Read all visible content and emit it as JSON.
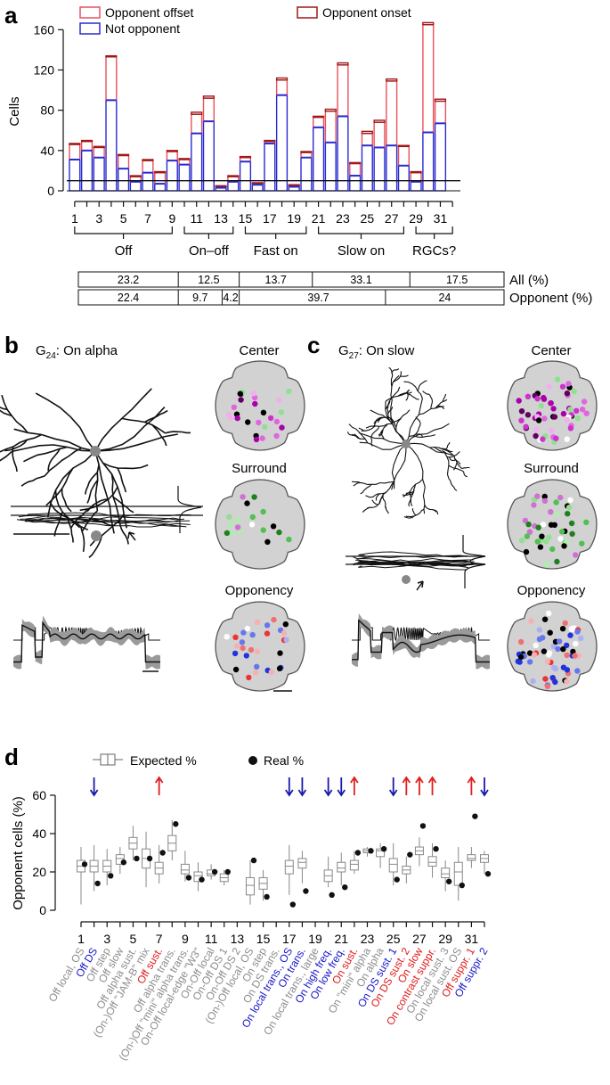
{
  "panels": {
    "a": "a",
    "b": "b",
    "c": "c",
    "d": "d"
  },
  "panel_a": {
    "legend": {
      "offset": "Opponent offset",
      "onset": "Opponent onset",
      "not": "Not opponent"
    },
    "groups": [
      {
        "label": "Off",
        "from": 1,
        "to": 9
      },
      {
        "label": "On–off",
        "from": 10,
        "to": 14
      },
      {
        "label": "Fast on",
        "from": 15,
        "to": 20
      },
      {
        "label": "Slow on",
        "from": 21,
        "to": 28
      },
      {
        "label": "RGCs?",
        "from": 29,
        "to": 32
      }
    ],
    "table": {
      "row_all_label": "All (%)",
      "row_all": [
        {
          "value": "23.2",
          "from": 1,
          "to": 9
        },
        {
          "value": "12.5",
          "from": 10,
          "to": 14
        },
        {
          "value": "13.7",
          "from": 15,
          "to": 20
        },
        {
          "value": "33.1",
          "from": 21,
          "to": 28
        },
        {
          "value": "17.5",
          "from": 29,
          "to": 32
        }
      ],
      "row_opp_label": "Opponent (%)",
      "row_opp": [
        {
          "value": "22.4",
          "from": 1,
          "to": 9
        },
        {
          "value": "9.7",
          "from": 10,
          "to": 13.6
        },
        {
          "value": "4.2",
          "from": 13.6,
          "to": 14
        },
        {
          "value": "39.7",
          "from": 15,
          "to": 27
        },
        {
          "value": "24",
          "from": 27,
          "to": 32
        }
      ]
    }
  },
  "panel_b": {
    "title_main": "G",
    "title_sub": "24",
    "title_rest": ": On alpha"
  },
  "panel_c": {
    "title_main": "G",
    "title_sub": "27",
    "title_rest": ": On slow"
  },
  "map_labels": {
    "center": "Center",
    "surround": "Surround",
    "opponency": "Opponency"
  },
  "colors": {
    "offset_red": "#e8505a",
    "onset_darkred": "#a01818",
    "not_blue": "#2a2ad0",
    "box_gray": "#888888",
    "label_gray": "#8c8c8c",
    "label_blue": "#1515c8",
    "label_red": "#e01818"
  },
  "chart_data": [
    {
      "type": "bar",
      "ylabel": "Cells",
      "ylim": [
        0,
        170
      ],
      "yticks": [
        0,
        40,
        80,
        120,
        160
      ],
      "categories": [
        1,
        2,
        3,
        4,
        5,
        6,
        7,
        8,
        9,
        10,
        11,
        12,
        13,
        14,
        15,
        16,
        17,
        18,
        19,
        20,
        21,
        22,
        23,
        24,
        25,
        26,
        27,
        28,
        29,
        30,
        31,
        32
      ],
      "xticks": [
        "1",
        "3",
        "5",
        "7",
        "9",
        "11",
        "13",
        "15",
        "17",
        "19",
        "21",
        "23",
        "25",
        "27",
        "29",
        "31"
      ],
      "threshold": 10,
      "series": [
        {
          "name": "Not opponent",
          "values": [
            31,
            40,
            33,
            90,
            22,
            9,
            18,
            7,
            30,
            26,
            57,
            69,
            3,
            9,
            29,
            6,
            47,
            95,
            4,
            33,
            63,
            48,
            74,
            15,
            45,
            43,
            45,
            25,
            9,
            58,
            67,
            0
          ]
        },
        {
          "name": "Opponent offset",
          "values": [
            15,
            9,
            10,
            43,
            13,
            5,
            12,
            11,
            9,
            5,
            19,
            23,
            1,
            5,
            4,
            1,
            2,
            15,
            1,
            5,
            10,
            31,
            51,
            12,
            12,
            25,
            64,
            19,
            9,
            107,
            22,
            0
          ]
        },
        {
          "name": "Opponent onset",
          "values": [
            1,
            1,
            1,
            1,
            1,
            1,
            1,
            1,
            1,
            1,
            2,
            2,
            1,
            1,
            1,
            1,
            1,
            2,
            1,
            1,
            1,
            2,
            2,
            1,
            2,
            2,
            2,
            1,
            1,
            2,
            2,
            0
          ]
        }
      ]
    },
    {
      "type": "box",
      "ylabel": "Opponent cells (%)",
      "ylim": [
        0,
        60
      ],
      "yticks": [
        0,
        20,
        40,
        60
      ],
      "legend": {
        "expected": "Expected %",
        "real": "Real %"
      },
      "xticks": [
        "1",
        "3",
        "5",
        "7",
        "9",
        "11",
        "13",
        "15",
        "17",
        "19",
        "21",
        "23",
        "25",
        "27",
        "29",
        "31"
      ],
      "categories": [
        {
          "id": 1,
          "name": "Off local, OS",
          "color": "gray",
          "box": [
            3,
            20,
            23,
            26,
            33
          ],
          "real": 24
        },
        {
          "id": 2,
          "name": "Off DS",
          "color": "blue",
          "box": [
            10,
            20,
            23,
            26,
            34
          ],
          "real": 14,
          "arrow": "down"
        },
        {
          "id": 3,
          "name": "Off step",
          "color": "gray",
          "box": [
            13,
            20,
            23,
            26,
            32
          ],
          "real": 18
        },
        {
          "id": 4,
          "name": "Off slow",
          "color": "gray",
          "box": [
            19,
            24,
            27,
            29,
            33
          ],
          "real": 25
        },
        {
          "id": 5,
          "name": "Off alpha sust.",
          "color": "gray",
          "box": [
            26,
            32,
            35,
            38,
            44
          ],
          "real": 27
        },
        {
          "id": 6,
          "name": "(On-)Off \"JAM-B\" mix",
          "color": "gray",
          "box": [
            12,
            22,
            27,
            32,
            41
          ],
          "real": 27
        },
        {
          "id": 7,
          "name": "Off sust.",
          "color": "red",
          "box": [
            14,
            19,
            22,
            25,
            34
          ],
          "real": 30,
          "arrow": "up"
        },
        {
          "id": 8,
          "name": "Off alpha trans.",
          "color": "gray",
          "box": [
            26,
            31,
            35,
            39,
            47
          ],
          "real": 45
        },
        {
          "id": 9,
          "name": "(On-)Off \"mini\" alpha trans.",
          "color": "gray",
          "box": [
            15,
            19,
            21,
            24,
            31
          ],
          "real": 17
        },
        {
          "id": 10,
          "name": "On-Off local-edge \"W3\"",
          "color": "gray",
          "box": [
            10,
            15,
            18,
            20,
            25
          ],
          "real": 16
        },
        {
          "id": 11,
          "name": "On-Off local",
          "color": "gray",
          "box": [
            16,
            18,
            19,
            21,
            24
          ],
          "real": 20
        },
        {
          "id": 12,
          "name": "On-Off DS 1",
          "color": "gray",
          "box": [
            13,
            15,
            17,
            19,
            21
          ],
          "real": 20
        },
        {
          "id": 13,
          "name": "On-Off DS 2",
          "color": null,
          "box": null,
          "real": null
        },
        {
          "id": 14,
          "name": "(On-)Off local, OS",
          "color": "gray",
          "box": [
            3,
            8,
            13,
            17,
            26
          ],
          "real": 26
        },
        {
          "id": 15,
          "name": "On step",
          "color": "gray",
          "box": [
            5,
            11,
            14,
            17,
            21
          ],
          "real": 7
        },
        {
          "id": 16,
          "name": "On DS trans.",
          "color": null,
          "box": null,
          "real": null
        },
        {
          "id": 17,
          "name": "On local trans., OS",
          "color": "blue",
          "box": [
            8,
            19,
            23,
            26,
            34
          ],
          "real": 3,
          "arrow": "down"
        },
        {
          "id": 18,
          "name": "On trans.",
          "color": "blue",
          "box": [
            14,
            22,
            25,
            27,
            31
          ],
          "real": 10,
          "arrow": "down"
        },
        {
          "id": 19,
          "name": "On local trans., large",
          "color": null,
          "box": null,
          "real": null
        },
        {
          "id": 20,
          "name": "On high freq.",
          "color": "blue",
          "box": [
            12,
            15,
            18,
            21,
            28
          ],
          "real": 8,
          "arrow": "down"
        },
        {
          "id": 21,
          "name": "On low freq.",
          "color": "blue",
          "box": [
            13,
            20,
            22,
            25,
            30
          ],
          "real": 12,
          "arrow": "down"
        },
        {
          "id": 22,
          "name": "On sust.",
          "color": "red",
          "box": [
            19,
            21,
            24,
            26,
            31
          ],
          "real": 30,
          "arrow": "up"
        },
        {
          "id": 23,
          "name": "On \"mini\" alpha",
          "color": "gray",
          "box": [
            28,
            30,
            31,
            32,
            33
          ],
          "real": 31
        },
        {
          "id": 24,
          "name": "On alpha",
          "color": "gray",
          "box": [
            22,
            28,
            31,
            32,
            35
          ],
          "real": 32
        },
        {
          "id": 25,
          "name": "On DS sust. 1",
          "color": "blue",
          "box": [
            13,
            20,
            24,
            27,
            35
          ],
          "real": 16,
          "arrow": "down"
        },
        {
          "id": 26,
          "name": "On DS sust. 2",
          "color": "red",
          "box": [
            14,
            19,
            21,
            23,
            28
          ],
          "real": 29,
          "arrow": "up"
        },
        {
          "id": 27,
          "name": "On slow",
          "color": "red",
          "box": [
            23,
            29,
            31,
            33,
            38
          ],
          "real": 44,
          "arrow": "up"
        },
        {
          "id": 28,
          "name": "On contrast suppr.",
          "color": "red",
          "box": [
            17,
            23,
            25,
            28,
            35
          ],
          "real": 32,
          "arrow": "up"
        },
        {
          "id": 29,
          "name": "On local sust. 3",
          "color": "gray",
          "box": [
            10,
            17,
            19,
            22,
            26
          ],
          "real": 15
        },
        {
          "id": 30,
          "name": "On local sust. OS",
          "color": "gray",
          "box": [
            5,
            13,
            20,
            25,
            33
          ],
          "real": 13
        },
        {
          "id": 31,
          "name": "Off suppr. 1",
          "color": "red",
          "box": [
            22,
            26,
            27,
            29,
            33
          ],
          "real": 49,
          "arrow": "up"
        },
        {
          "id": 32,
          "name": "Off suppr. 2",
          "color": "blue",
          "box": [
            19,
            25,
            27,
            29,
            31
          ],
          "real": 19,
          "arrow": "down"
        }
      ]
    }
  ]
}
